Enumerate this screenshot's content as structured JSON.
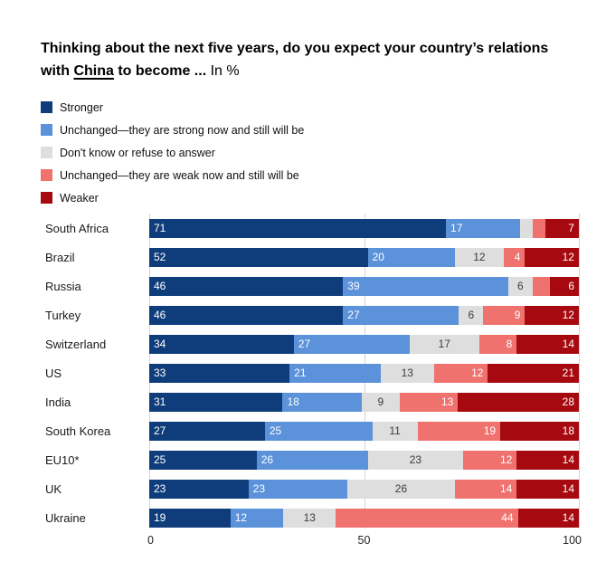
{
  "title": {
    "prefix": "Thinking about the next five years, do you expect your country’s relations with ",
    "underlined": "China",
    "suffix": " to become ... ",
    "unit": "In %"
  },
  "legend": {
    "items": [
      {
        "label": "Stronger",
        "color": "#0f3d7c"
      },
      {
        "label": "Unchanged—they are strong now and still will be",
        "color": "#5b92d9"
      },
      {
        "label": "Don't know or refuse to answer",
        "color": "#dedede"
      },
      {
        "label": "Unchanged—they are weak now and still will be",
        "color": "#ef726f"
      },
      {
        "label": "Weaker",
        "color": "#a60a10"
      }
    ]
  },
  "chart_data": {
    "type": "bar",
    "stacked": true,
    "orientation": "horizontal",
    "title": "Thinking about the next five years, do you expect your country’s relations with China to become ... In %",
    "categories": [
      "South Africa",
      "Brazil",
      "Russia",
      "Turkey",
      "Switzerland",
      "US",
      "India",
      "South Korea",
      "EU10*",
      "UK",
      "Ukraine"
    ],
    "series": [
      {
        "name": "Stronger",
        "color": "#0f3d7c",
        "values": [
          71,
          52,
          46,
          46,
          34,
          33,
          31,
          27,
          25,
          23,
          19
        ]
      },
      {
        "name": "Unchanged—they are strong now and still will be",
        "color": "#5b92d9",
        "values": [
          17,
          20,
          39,
          27,
          27,
          21,
          18,
          25,
          26,
          23,
          12
        ]
      },
      {
        "name": "Don't know or refuse to answer",
        "color": "#dedede",
        "values": [
          3,
          12,
          6,
          6,
          17,
          13,
          9,
          11,
          23,
          26,
          13
        ]
      },
      {
        "name": "Unchanged—they are weak now and still will be",
        "color": "#ef726f",
        "values": [
          2,
          4,
          3,
          9,
          8,
          12,
          13,
          19,
          12,
          14,
          44
        ]
      },
      {
        "name": "Weaker",
        "color": "#a60a10",
        "values": [
          7,
          12,
          6,
          12,
          14,
          21,
          28,
          18,
          14,
          14,
          14
        ]
      }
    ],
    "hidden_value_labels": [
      [
        0,
        2
      ],
      [
        0,
        3
      ],
      [
        2,
        3
      ]
    ],
    "xlim": [
      0,
      100
    ],
    "x_ticks": [
      0,
      50,
      100
    ],
    "x_tick_labels": [
      "0",
      "50",
      "100"
    ],
    "grid": "vertical-at-ticks",
    "legend_position": "top-left"
  }
}
